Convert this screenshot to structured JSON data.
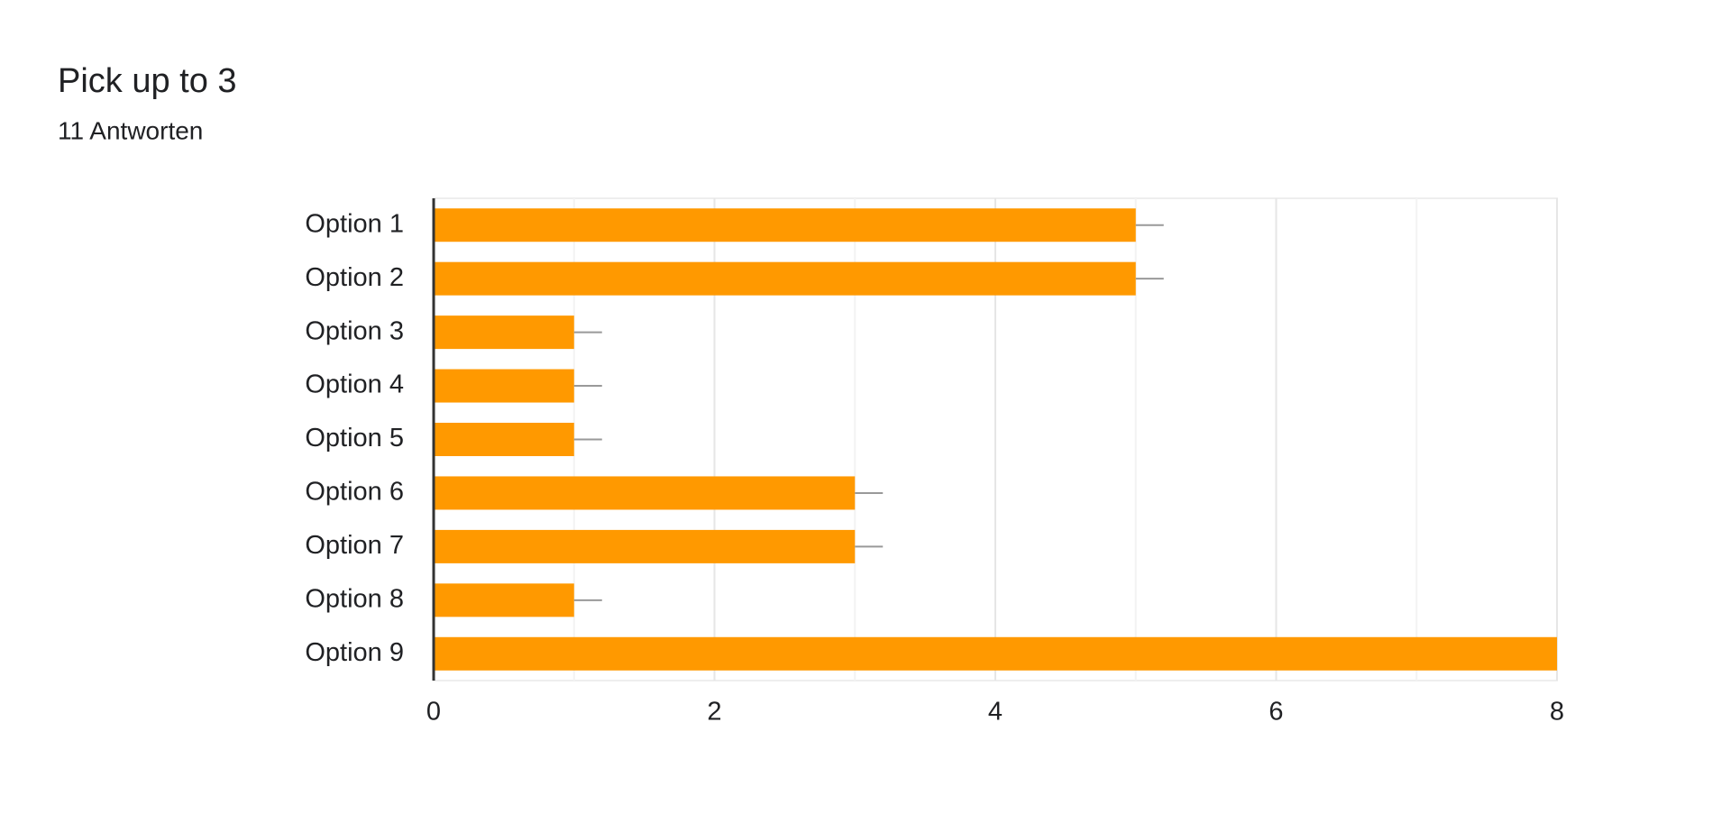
{
  "chart_data": {
    "type": "bar",
    "orientation": "horizontal",
    "title": "Pick up to 3",
    "subtitle": "11 Antworten",
    "categories": [
      "Option 1",
      "Option 2",
      "Option 3",
      "Option 4",
      "Option 5",
      "Option 6",
      "Option 7",
      "Option 8",
      "Option 9"
    ],
    "values": [
      5,
      5,
      1,
      1,
      1,
      3,
      3,
      1,
      8
    ],
    "color": "#ff9900",
    "xlim": [
      0,
      8
    ],
    "xticks": [
      0,
      2,
      4,
      6,
      8
    ],
    "grid": true,
    "minor_grid": true
  }
}
